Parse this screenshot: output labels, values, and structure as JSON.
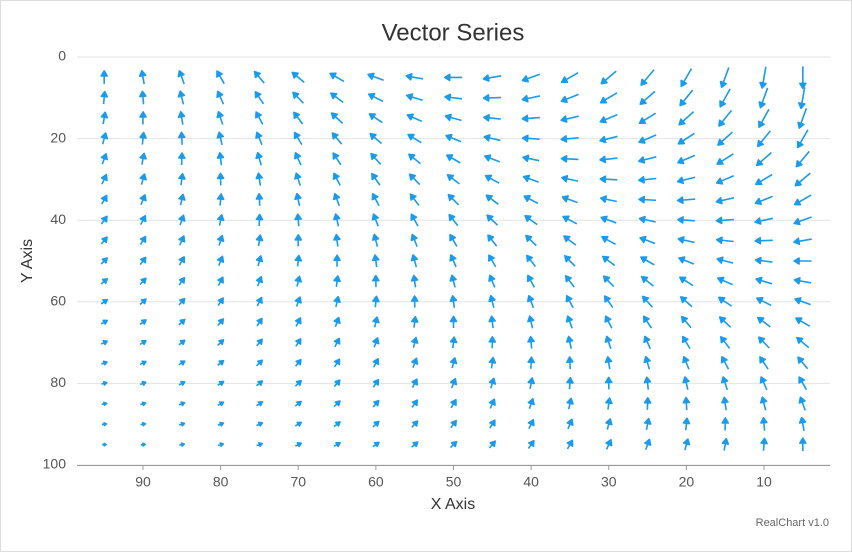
{
  "chart_data": {
    "type": "vector",
    "title": "Vector Series",
    "x_axis_title": "X Axis",
    "y_axis_title": "Y Axis",
    "credit": "RealChart v1.0",
    "color": "#1a9bec",
    "grid": true,
    "xlim": [
      1.5,
      98.5
    ],
    "x_reversed": true,
    "xticks": [
      90,
      80,
      70,
      60,
      50,
      40,
      30,
      20,
      10
    ],
    "ylim": [
      0,
      100
    ],
    "y_reversed": true,
    "yticks": [
      0,
      20,
      40,
      60,
      80,
      100
    ],
    "x": [
      95,
      90,
      85,
      80,
      75,
      70,
      65,
      60,
      55,
      50,
      45,
      40,
      35,
      30,
      25,
      20,
      15,
      10,
      5
    ],
    "y": [
      5,
      10,
      15,
      20,
      25,
      30,
      35,
      40,
      45,
      50,
      55,
      60,
      65,
      70,
      75,
      80,
      85,
      90,
      95
    ],
    "angles": [
      [
        90,
        100,
        110,
        120,
        130,
        140,
        150,
        160,
        170,
        180,
        190,
        200,
        210,
        220,
        230,
        240,
        250,
        260,
        270
      ],
      [
        85,
        95,
        104,
        114,
        124,
        134,
        143,
        153,
        163,
        173,
        182,
        192,
        202,
        211,
        221,
        231,
        241,
        250,
        260
      ],
      [
        80,
        89,
        99,
        108,
        118,
        127,
        137,
        146,
        156,
        165,
        174,
        184,
        193,
        203,
        212,
        222,
        231,
        241,
        250
      ],
      [
        75,
        84,
        93,
        103,
        112,
        121,
        130,
        139,
        148,
        158,
        167,
        176,
        185,
        194,
        203,
        213,
        222,
        231,
        240
      ],
      [
        70,
        79,
        88,
        97,
        106,
        114,
        123,
        132,
        141,
        150,
        159,
        168,
        177,
        186,
        194,
        203,
        212,
        221,
        230
      ],
      [
        65,
        74,
        82,
        91,
        99,
        108,
        117,
        125,
        134,
        143,
        151,
        160,
        168,
        177,
        186,
        194,
        203,
        211,
        220
      ],
      [
        60,
        68,
        77,
        85,
        93,
        102,
        110,
        118,
        127,
        135,
        143,
        152,
        160,
        168,
        177,
        185,
        193,
        202,
        210
      ],
      [
        55,
        63,
        71,
        79,
        87,
        95,
        103,
        111,
        119,
        128,
        136,
        144,
        152,
        160,
        168,
        176,
        184,
        192,
        200
      ],
      [
        50,
        58,
        66,
        73,
        81,
        89,
        97,
        104,
        112,
        120,
        128,
        136,
        143,
        151,
        159,
        167,
        174,
        182,
        190
      ],
      [
        45,
        53,
        60,
        68,
        75,
        83,
        90,
        98,
        105,
        113,
        120,
        128,
        135,
        143,
        150,
        158,
        165,
        173,
        180
      ],
      [
        40,
        47,
        54,
        62,
        69,
        76,
        83,
        91,
        98,
        105,
        112,
        119,
        127,
        134,
        141,
        148,
        156,
        163,
        170
      ],
      [
        35,
        42,
        49,
        56,
        63,
        70,
        77,
        84,
        91,
        98,
        104,
        111,
        118,
        125,
        132,
        139,
        146,
        153,
        160
      ],
      [
        30,
        37,
        43,
        50,
        57,
        63,
        70,
        77,
        83,
        90,
        97,
        103,
        110,
        117,
        123,
        130,
        137,
        143,
        150
      ],
      [
        25,
        31,
        38,
        44,
        51,
        57,
        63,
        70,
        76,
        83,
        89,
        95,
        102,
        108,
        114,
        121,
        127,
        134,
        140
      ],
      [
        20,
        26,
        32,
        38,
        44,
        51,
        57,
        63,
        69,
        75,
        81,
        87,
        93,
        99,
        106,
        112,
        118,
        124,
        130
      ],
      [
        15,
        21,
        27,
        33,
        38,
        44,
        50,
        56,
        62,
        68,
        73,
        79,
        85,
        91,
        97,
        103,
        108,
        114,
        120
      ],
      [
        10,
        16,
        21,
        27,
        32,
        38,
        43,
        49,
        54,
        60,
        66,
        71,
        77,
        82,
        88,
        93,
        99,
        104,
        110
      ],
      [
        5,
        10,
        16,
        21,
        26,
        31,
        37,
        42,
        47,
        53,
        58,
        63,
        68,
        74,
        79,
        84,
        89,
        95,
        100
      ],
      [
        0,
        5,
        10,
        15,
        20,
        25,
        30,
        35,
        40,
        45,
        50,
        55,
        60,
        65,
        70,
        75,
        80,
        85,
        90
      ]
    ],
    "lengths": [
      [
        13,
        13.5,
        14,
        14.5,
        15,
        15.5,
        16,
        16.5,
        17,
        17.5,
        18,
        18.5,
        19,
        19.5,
        20,
        20.5,
        21,
        21.5,
        22
      ],
      [
        12.5,
        13,
        13.5,
        14,
        14.5,
        15,
        15.5,
        16,
        16.5,
        17,
        17.5,
        18,
        18.5,
        19,
        19.5,
        20,
        20.5,
        21,
        21.5
      ],
      [
        12,
        12.5,
        13,
        13.5,
        14,
        14.5,
        15,
        15.5,
        16,
        16.5,
        17,
        17.5,
        18,
        18.5,
        19,
        19.5,
        20,
        20.5,
        21
      ],
      [
        11.5,
        12,
        12.5,
        13,
        13.5,
        14,
        14.5,
        15,
        15.5,
        16,
        16.5,
        17,
        17.5,
        18,
        18.5,
        19,
        19.5,
        20,
        20.5
      ],
      [
        11,
        11.5,
        12,
        12.5,
        13,
        13.5,
        14,
        14.5,
        15,
        15.5,
        16,
        16.5,
        17,
        17.5,
        18,
        18.5,
        19,
        19.5,
        20
      ],
      [
        10.5,
        11,
        11.5,
        12,
        12.5,
        13,
        13.5,
        14,
        14.5,
        15,
        15.5,
        16,
        16.5,
        17,
        17.5,
        18,
        18.5,
        19,
        19.5
      ],
      [
        10,
        10.5,
        11,
        11.5,
        12,
        12.5,
        13,
        13.5,
        14,
        14.5,
        15,
        15.5,
        16,
        16.5,
        17,
        17.5,
        18,
        18.5,
        19
      ],
      [
        9.5,
        10,
        10.5,
        11,
        11.5,
        12,
        12.5,
        13,
        13.5,
        14,
        14.5,
        15,
        15.5,
        16,
        16.5,
        17,
        17.5,
        18,
        18.5
      ],
      [
        9,
        9.5,
        10,
        10.5,
        11,
        11.5,
        12,
        12.5,
        13,
        13.5,
        14,
        14.5,
        15,
        15.5,
        16,
        16.5,
        17,
        17.5,
        18
      ],
      [
        8.5,
        9,
        9.5,
        10,
        10.5,
        11,
        11.5,
        12,
        12.5,
        13,
        13.5,
        14,
        14.5,
        15,
        15.5,
        16,
        16.5,
        17,
        17.5
      ],
      [
        8,
        8.5,
        9,
        9.5,
        10,
        10.5,
        11,
        11.5,
        12,
        12.5,
        13,
        13.5,
        14,
        14.5,
        15,
        15.5,
        16,
        16.5,
        17
      ],
      [
        7.5,
        8,
        8.5,
        9,
        9.5,
        10,
        10.5,
        11,
        11.5,
        12,
        12.5,
        13,
        13.5,
        14,
        14.5,
        15,
        15.5,
        16,
        16.5
      ],
      [
        7,
        7.5,
        8,
        8.5,
        9,
        9.5,
        10,
        10.5,
        11,
        11.5,
        12,
        12.5,
        13,
        13.5,
        14,
        14.5,
        15,
        15.5,
        16
      ],
      [
        6.5,
        7,
        7.5,
        8,
        8.5,
        9,
        9.5,
        10,
        10.5,
        11,
        11.5,
        12,
        12.5,
        13,
        13.5,
        14,
        14.5,
        15,
        15.5
      ],
      [
        6,
        6.5,
        7,
        7.5,
        8,
        8.5,
        9,
        9.5,
        10,
        10.5,
        11,
        11.5,
        12,
        12.5,
        13,
        13.5,
        14,
        14.5,
        15
      ],
      [
        5.5,
        6,
        6.5,
        7,
        7.5,
        8,
        8.5,
        9,
        9.5,
        10,
        10.5,
        11,
        11.5,
        12,
        12.5,
        13,
        13.5,
        14,
        14.5
      ],
      [
        5,
        5.5,
        6,
        6.5,
        7,
        7.5,
        8,
        8.5,
        9,
        9.5,
        10,
        10.5,
        11,
        11.5,
        12,
        12.5,
        13,
        13.5,
        14
      ],
      [
        4.5,
        5,
        5.5,
        6,
        6.5,
        7,
        7.5,
        8,
        8.5,
        9,
        9.5,
        10,
        10.5,
        11,
        11.5,
        12,
        12.5,
        13,
        13.5
      ],
      [
        4,
        4.5,
        5,
        5.5,
        6,
        6.5,
        7,
        7.5,
        8,
        8.5,
        9,
        9.5,
        10,
        10.5,
        11,
        11.5,
        12,
        12.5,
        13
      ]
    ]
  }
}
